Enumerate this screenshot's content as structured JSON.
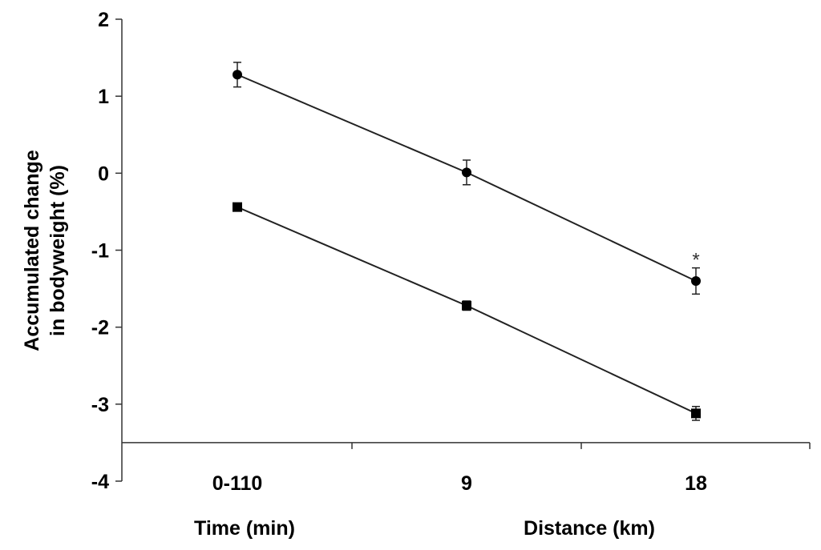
{
  "chart_data": {
    "type": "line",
    "title": "",
    "ylabel_lines": [
      "Accumulated change",
      "in bodyweight (%)"
    ],
    "xlabel_left": "Time (min)",
    "xlabel_right": "Distance (km)",
    "categories": [
      "0-110",
      "9",
      "18"
    ],
    "ylim": [
      -4,
      2
    ],
    "y_ticks": [
      2,
      1,
      0,
      -1,
      -2,
      -3,
      -4
    ],
    "y_tick_labels": [
      "2",
      "1",
      "0",
      "-1",
      "-2",
      "-3",
      "-4"
    ],
    "x_axis_at": -3.5,
    "grid": false,
    "series": [
      {
        "marker": "circle",
        "values": [
          1.28,
          0.01,
          -1.4
        ],
        "errors": [
          0.16,
          0.16,
          0.17
        ]
      },
      {
        "marker": "square",
        "values": [
          -0.44,
          -1.72,
          -3.12
        ],
        "errors": [
          0.03,
          0.06,
          0.09
        ]
      }
    ],
    "annotations": [
      {
        "text": "*",
        "category_index": 2,
        "y": -1.06
      }
    ],
    "colors": {
      "line": "#222222",
      "marker": "#000000",
      "axis": "#333333"
    }
  }
}
